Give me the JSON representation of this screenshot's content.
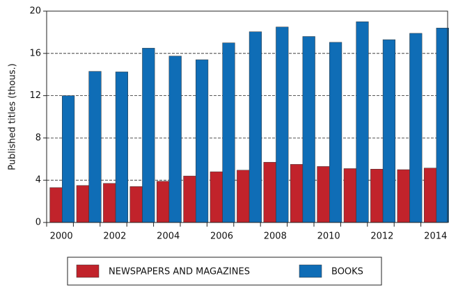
{
  "chart_data": {
    "type": "bar",
    "y_label": "Published titles (thous.)",
    "categories": [
      "2000",
      null,
      "2002",
      null,
      "2004",
      null,
      "2006",
      null,
      "2008",
      null,
      "2010",
      null,
      "2012",
      null,
      "2014"
    ],
    "series": [
      {
        "name": "NEWSPAPERS AND MAGAZINES",
        "color": "#c1232b",
        "values": [
          3.3,
          3.5,
          3.7,
          3.4,
          3.9,
          4.4,
          4.8,
          4.95,
          5.7,
          5.5,
          5.3,
          5.1,
          5.05,
          5.0,
          5.15
        ]
      },
      {
        "name": "BOOKS",
        "color": "#0f6db6",
        "values": [
          12.0,
          14.3,
          14.25,
          16.5,
          15.75,
          15.4,
          17.0,
          18.05,
          18.5,
          17.6,
          17.05,
          19.0,
          17.3,
          17.9,
          18.4
        ]
      }
    ],
    "ylim": [
      0,
      20
    ],
    "yticks": [
      0,
      4,
      8,
      12,
      16,
      20
    ],
    "grid": true,
    "legend": "bottom"
  }
}
